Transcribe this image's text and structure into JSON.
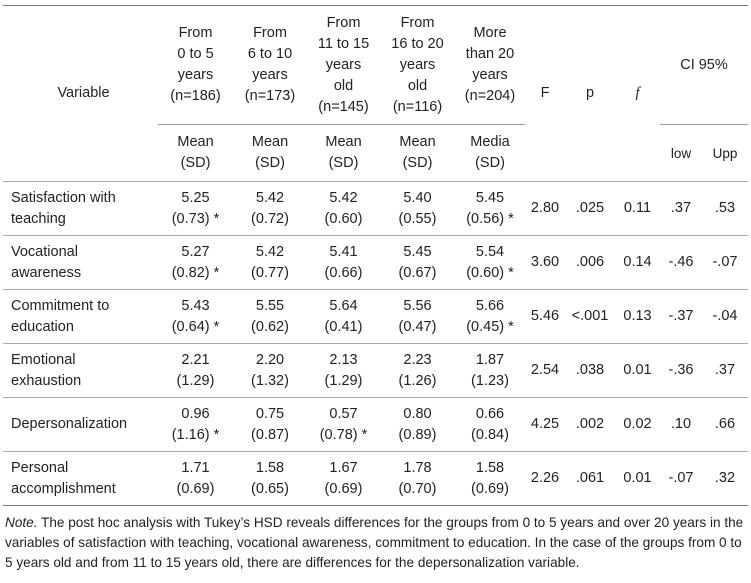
{
  "table": {
    "header": {
      "variable": "Variable",
      "groups": [
        [
          "From",
          "0 to 5",
          "years",
          "(n=186)"
        ],
        [
          "From",
          "6 to 10",
          "years",
          "(n=173)"
        ],
        [
          "From",
          "11 to 15",
          "years",
          "old",
          "(n=145)"
        ],
        [
          "From",
          "16 to 20",
          "years",
          "old",
          "(n=116)"
        ],
        [
          "More",
          "than 20",
          "years",
          "(n=204)"
        ]
      ],
      "F": "F",
      "p": "p",
      "f": "f",
      "ci": "CI 95%"
    },
    "subheader": {
      "groups": [
        [
          "Mean",
          "(SD)"
        ],
        [
          "Mean",
          "(SD)"
        ],
        [
          "Mean",
          "(SD)"
        ],
        [
          "Mean",
          "(SD)"
        ],
        [
          "Media",
          "(SD)"
        ]
      ],
      "low": "low",
      "upp": "Upp"
    },
    "rows": [
      {
        "variable": [
          "Satisfaction with",
          "teaching"
        ],
        "groups": [
          [
            "5.25",
            "(0.73) *"
          ],
          [
            "5.42",
            "(0.72)"
          ],
          [
            "5.42",
            "(0.60)"
          ],
          [
            "5.40",
            "(0.55)"
          ],
          [
            "5.45",
            "(0.56) *"
          ]
        ],
        "F": "2.80",
        "p": ".025",
        "f": "0.11",
        "low": ".37",
        "upp": ".53"
      },
      {
        "variable": [
          "Vocational",
          "awareness"
        ],
        "groups": [
          [
            "5.27",
            "(0.82) *"
          ],
          [
            "5.42",
            "(0.77)"
          ],
          [
            "5.41",
            "(0.66)"
          ],
          [
            "5.45",
            "(0.67)"
          ],
          [
            "5.54",
            "(0.60) *"
          ]
        ],
        "F": "3.60",
        "p": ".006",
        "f": "0.14",
        "low": "-.46",
        "upp": "-.07"
      },
      {
        "variable": [
          "Commitment to",
          "education"
        ],
        "groups": [
          [
            "5.43",
            "(0.64) *"
          ],
          [
            "5.55",
            "(0.62)"
          ],
          [
            "5.64",
            "(0.41)"
          ],
          [
            "5.56",
            "(0.47)"
          ],
          [
            "5.66",
            "(0.45) *"
          ]
        ],
        "F": "5.46",
        "p": "<.001",
        "f": "0.13",
        "low": "-.37",
        "upp": "-.04"
      },
      {
        "variable": [
          "Emotional",
          "exhaustion"
        ],
        "groups": [
          [
            "2.21",
            "(1.29)"
          ],
          [
            "2.20",
            "(1.32)"
          ],
          [
            "2.13",
            "(1.29)"
          ],
          [
            "2.23",
            "(1.26)"
          ],
          [
            "1.87",
            "(1.23)"
          ]
        ],
        "F": "2.54",
        "p": ".038",
        "f": "0.01",
        "low": "-.36",
        "upp": ".37"
      },
      {
        "variable": [
          "Depersonalization"
        ],
        "groups": [
          [
            "0.96",
            "(1.16) *"
          ],
          [
            "0.75",
            "(0.87)"
          ],
          [
            "0.57",
            "(0.78) *"
          ],
          [
            "0.80",
            "(0.89)"
          ],
          [
            "0.66",
            "(0.84)"
          ]
        ],
        "F": "4.25",
        "p": ".002",
        "f": "0.02",
        "low": ".10",
        "upp": ".66"
      },
      {
        "variable": [
          "Personal",
          "accomplishment"
        ],
        "groups": [
          [
            "1.71",
            "(0.69)"
          ],
          [
            "1.58",
            "(0.65)"
          ],
          [
            "1.67",
            "(0.69)"
          ],
          [
            "1.78",
            "(0.70)"
          ],
          [
            "1.58",
            "(0.69)"
          ]
        ],
        "F": "2.26",
        "p": ".061",
        "f": "0.01",
        "low": "-.07",
        "upp": ".32"
      }
    ]
  },
  "note": {
    "label": "Note.",
    "text": "The post hoc analysis with Tukey’s HSD reveals differences for the groups from 0 to 5 years and over 20 years in the variables of satisfaction with teaching, vocational awareness, commitment to education. In the case of the groups from 0 to 5 years old and from 11 to 15 years old, there are differences for the depersonalization variable."
  }
}
